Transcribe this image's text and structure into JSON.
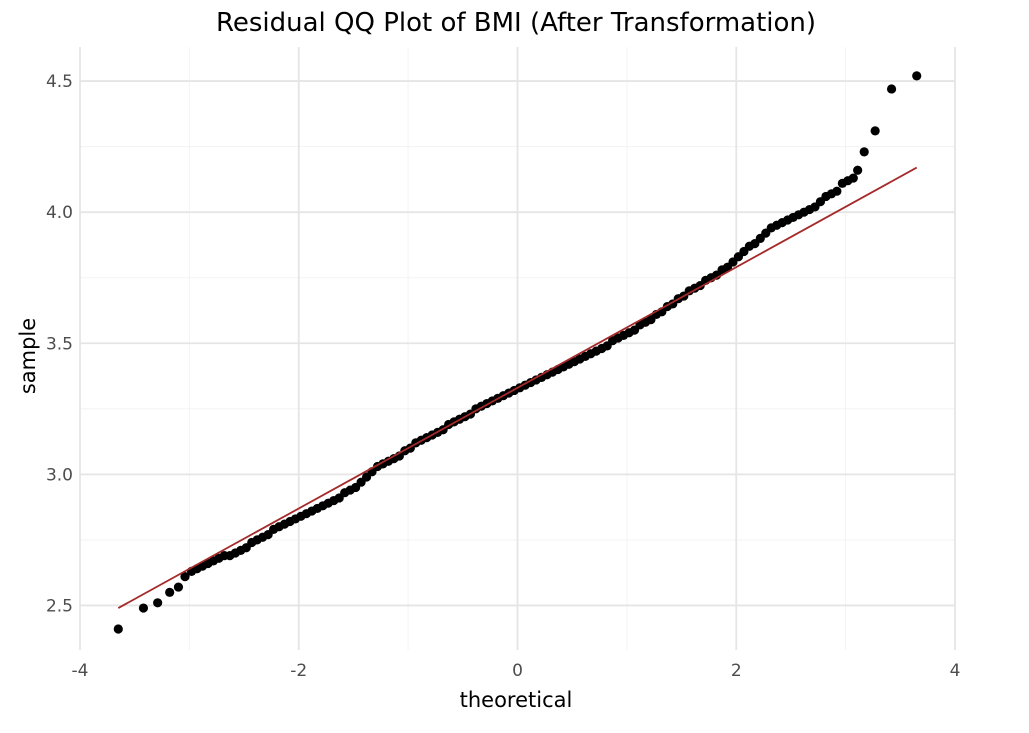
{
  "chart_data": {
    "type": "scatter",
    "title": "Residual QQ Plot of BMI (After Transformation)",
    "xlabel": "theoretical",
    "ylabel": "sample",
    "xlim": [
      -4,
      4
    ],
    "ylim": [
      2.33,
      4.63
    ],
    "x_ticks": [
      -4,
      -2,
      0,
      2,
      4
    ],
    "x_tick_labels": [
      "-4",
      "-2",
      "0",
      "2",
      "4"
    ],
    "y_ticks": [
      2.5,
      3.0,
      3.5,
      4.0,
      4.5
    ],
    "y_tick_labels": [
      "2.5",
      "3.0",
      "3.5",
      "4.0",
      "4.5"
    ],
    "grid": true,
    "colors": {
      "points": "#000000",
      "reference_line": "#a52a2a"
    },
    "reference_line": {
      "x": [
        -3.65,
        3.65
      ],
      "y": [
        2.49,
        4.17
      ]
    },
    "series": [
      {
        "points": [
          [
            -3.65,
            2.41
          ],
          [
            -3.42,
            2.49
          ],
          [
            -3.29,
            2.51
          ],
          [
            -3.18,
            2.55
          ],
          [
            -3.1,
            2.57
          ],
          [
            -3.04,
            2.61
          ],
          [
            -2.98,
            2.63
          ],
          [
            -2.93,
            2.64
          ],
          [
            -2.88,
            2.65
          ],
          [
            -2.83,
            2.66
          ],
          [
            -2.78,
            2.67
          ],
          [
            -2.73,
            2.68
          ],
          [
            -2.68,
            2.69
          ],
          [
            -2.63,
            2.69
          ],
          [
            -2.58,
            2.7
          ],
          [
            -2.53,
            2.71
          ],
          [
            -2.48,
            2.72
          ],
          [
            -2.43,
            2.74
          ],
          [
            -2.38,
            2.75
          ],
          [
            -2.33,
            2.76
          ],
          [
            -2.28,
            2.77
          ],
          [
            -2.23,
            2.79
          ],
          [
            -2.18,
            2.8
          ],
          [
            -2.13,
            2.81
          ],
          [
            -2.08,
            2.82
          ],
          [
            -2.03,
            2.83
          ],
          [
            -1.98,
            2.84
          ],
          [
            -1.93,
            2.85
          ],
          [
            -1.88,
            2.86
          ],
          [
            -1.83,
            2.87
          ],
          [
            -1.78,
            2.88
          ],
          [
            -1.73,
            2.89
          ],
          [
            -1.68,
            2.9
          ],
          [
            -1.63,
            2.91
          ],
          [
            -1.58,
            2.93
          ],
          [
            -1.53,
            2.94
          ],
          [
            -1.48,
            2.95
          ],
          [
            -1.43,
            2.97
          ],
          [
            -1.38,
            2.99
          ],
          [
            -1.33,
            3.01
          ],
          [
            -1.28,
            3.03
          ],
          [
            -1.23,
            3.04
          ],
          [
            -1.18,
            3.05
          ],
          [
            -1.13,
            3.06
          ],
          [
            -1.08,
            3.07
          ],
          [
            -1.03,
            3.09
          ],
          [
            -0.98,
            3.1
          ],
          [
            -0.93,
            3.12
          ],
          [
            -0.88,
            3.13
          ],
          [
            -0.83,
            3.14
          ],
          [
            -0.78,
            3.15
          ],
          [
            -0.73,
            3.16
          ],
          [
            -0.68,
            3.17
          ],
          [
            -0.63,
            3.19
          ],
          [
            -0.58,
            3.2
          ],
          [
            -0.53,
            3.21
          ],
          [
            -0.48,
            3.22
          ],
          [
            -0.43,
            3.23
          ],
          [
            -0.38,
            3.25
          ],
          [
            -0.33,
            3.26
          ],
          [
            -0.28,
            3.27
          ],
          [
            -0.23,
            3.28
          ],
          [
            -0.18,
            3.29
          ],
          [
            -0.13,
            3.3
          ],
          [
            -0.08,
            3.31
          ],
          [
            -0.03,
            3.32
          ],
          [
            0.02,
            3.33
          ],
          [
            0.07,
            3.34
          ],
          [
            0.12,
            3.35
          ],
          [
            0.17,
            3.36
          ],
          [
            0.22,
            3.37
          ],
          [
            0.27,
            3.38
          ],
          [
            0.32,
            3.39
          ],
          [
            0.37,
            3.4
          ],
          [
            0.42,
            3.41
          ],
          [
            0.47,
            3.42
          ],
          [
            0.52,
            3.43
          ],
          [
            0.57,
            3.44
          ],
          [
            0.62,
            3.45
          ],
          [
            0.67,
            3.46
          ],
          [
            0.72,
            3.47
          ],
          [
            0.77,
            3.48
          ],
          [
            0.82,
            3.49
          ],
          [
            0.87,
            3.51
          ],
          [
            0.92,
            3.52
          ],
          [
            0.97,
            3.53
          ],
          [
            1.02,
            3.54
          ],
          [
            1.07,
            3.55
          ],
          [
            1.12,
            3.57
          ],
          [
            1.17,
            3.58
          ],
          [
            1.22,
            3.59
          ],
          [
            1.27,
            3.61
          ],
          [
            1.32,
            3.62
          ],
          [
            1.37,
            3.64
          ],
          [
            1.42,
            3.65
          ],
          [
            1.47,
            3.67
          ],
          [
            1.52,
            3.68
          ],
          [
            1.57,
            3.7
          ],
          [
            1.62,
            3.71
          ],
          [
            1.67,
            3.72
          ],
          [
            1.72,
            3.74
          ],
          [
            1.77,
            3.75
          ],
          [
            1.82,
            3.76
          ],
          [
            1.87,
            3.78
          ],
          [
            1.92,
            3.79
          ],
          [
            1.97,
            3.81
          ],
          [
            2.02,
            3.83
          ],
          [
            2.07,
            3.85
          ],
          [
            2.12,
            3.87
          ],
          [
            2.17,
            3.88
          ],
          [
            2.22,
            3.9
          ],
          [
            2.27,
            3.92
          ],
          [
            2.32,
            3.94
          ],
          [
            2.37,
            3.95
          ],
          [
            2.42,
            3.96
          ],
          [
            2.47,
            3.97
          ],
          [
            2.52,
            3.98
          ],
          [
            2.57,
            3.99
          ],
          [
            2.62,
            4.0
          ],
          [
            2.67,
            4.01
          ],
          [
            2.72,
            4.02
          ],
          [
            2.77,
            4.04
          ],
          [
            2.82,
            4.06
          ],
          [
            2.87,
            4.07
          ],
          [
            2.92,
            4.08
          ],
          [
            2.97,
            4.11
          ],
          [
            3.02,
            4.12
          ],
          [
            3.07,
            4.13
          ],
          [
            3.11,
            4.16
          ],
          [
            3.17,
            4.23
          ],
          [
            3.27,
            4.31
          ],
          [
            3.42,
            4.47
          ],
          [
            3.65,
            4.52
          ]
        ]
      }
    ]
  }
}
